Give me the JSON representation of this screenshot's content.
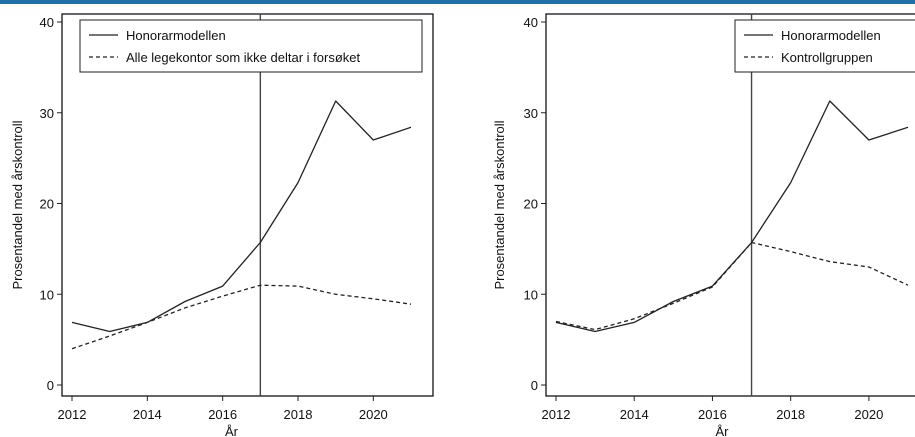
{
  "colors": {
    "top_rule": "#1f6fa8",
    "ink": "#222222",
    "frame": "#000000",
    "background": "#ffffff"
  },
  "chart_data": [
    {
      "type": "line",
      "xlabel": "År",
      "ylabel": "Prosentandel med årskontroll",
      "xlim": [
        2012,
        2021
      ],
      "ylim": [
        0,
        40
      ],
      "xticks": [
        "2012",
        "2014",
        "2016",
        "2018",
        "2020"
      ],
      "yticks": [
        "0",
        "10",
        "20",
        "30",
        "40"
      ],
      "grid": false,
      "legend_position": "top-left",
      "vline_x": 2017,
      "x": [
        2012,
        2013,
        2014,
        2015,
        2016,
        2017,
        2018,
        2019,
        2020,
        2021
      ],
      "series": [
        {
          "name": "Honorarmodellen",
          "style": "solid",
          "values": [
            6.9,
            5.9,
            6.9,
            9.2,
            10.9,
            15.7,
            22.3,
            31.3,
            27.0,
            28.4
          ]
        },
        {
          "name": "Alle legekontor som ikke deltar i forsøket",
          "style": "dashed",
          "values": [
            4.0,
            5.4,
            6.9,
            8.5,
            9.8,
            11.0,
            10.9,
            10.0,
            9.5,
            8.9
          ]
        }
      ]
    },
    {
      "type": "line",
      "xlabel": "År",
      "ylabel": "Prosentandel med årskontroll",
      "xlim": [
        2012,
        2021
      ],
      "ylim": [
        0,
        40
      ],
      "xticks": [
        "2012",
        "2014",
        "2016",
        "2018",
        "2020"
      ],
      "yticks": [
        "0",
        "10",
        "20",
        "30",
        "40"
      ],
      "grid": false,
      "legend_position": "top-right",
      "vline_x": 2017,
      "x": [
        2012,
        2013,
        2014,
        2015,
        2016,
        2017,
        2018,
        2019,
        2020,
        2021
      ],
      "series": [
        {
          "name": "Honorarmodellen",
          "style": "solid",
          "values": [
            6.9,
            5.9,
            6.9,
            9.2,
            10.9,
            15.7,
            22.3,
            31.3,
            27.0,
            28.4
          ]
        },
        {
          "name": "Kontrollgruppen",
          "style": "dashed",
          "values": [
            7.0,
            6.1,
            7.3,
            9.0,
            10.8,
            15.7,
            14.7,
            13.6,
            13.0,
            11.0
          ]
        }
      ]
    }
  ]
}
